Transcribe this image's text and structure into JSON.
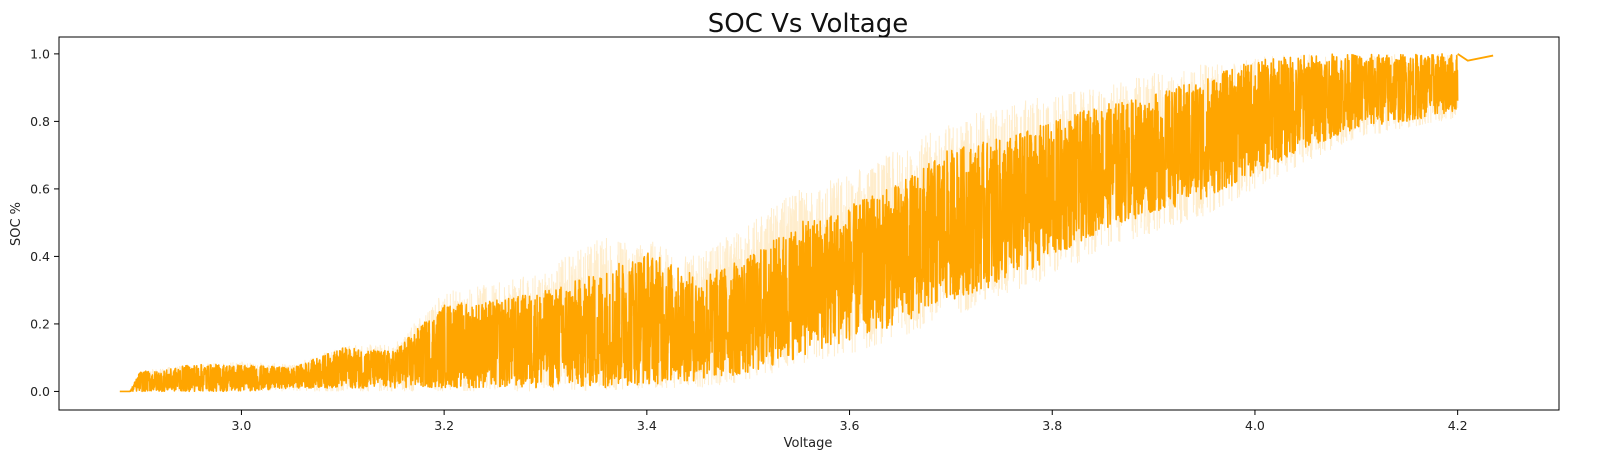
{
  "chart_data": {
    "type": "line",
    "title": "SOC Vs Voltage",
    "xlabel": "Voltage",
    "ylabel": "SOC %",
    "xlim": [
      2.82,
      4.3
    ],
    "ylim": [
      -0.055,
      1.05
    ],
    "x_ticks": [
      "3.0",
      "3.2",
      "3.4",
      "3.6",
      "3.8",
      "4.0",
      "4.2"
    ],
    "y_ticks": [
      "0.0",
      "0.2",
      "0.4",
      "0.6",
      "0.8",
      "1.0"
    ],
    "grid": false,
    "legend": "none",
    "color": "#FFA500",
    "band_color": "#FFA500",
    "band_opacity": 0.2,
    "series": [
      {
        "x": [
          2.88,
          2.89,
          2.9,
          2.92,
          2.95,
          3.0,
          3.05,
          3.1,
          3.15,
          3.2,
          3.25,
          3.3,
          3.35,
          3.4,
          3.45,
          3.5,
          3.55,
          3.6,
          3.65,
          3.7,
          3.75,
          3.8,
          3.85,
          3.9,
          3.95,
          4.0,
          4.05,
          4.1,
          4.15,
          4.2,
          4.21,
          4.235
        ],
        "upper": [
          0.0,
          0.0,
          0.06,
          0.06,
          0.08,
          0.08,
          0.07,
          0.13,
          0.12,
          0.26,
          0.27,
          0.3,
          0.35,
          0.42,
          0.34,
          0.4,
          0.5,
          0.55,
          0.62,
          0.72,
          0.75,
          0.8,
          0.85,
          0.88,
          0.93,
          0.98,
          1.0,
          1.0,
          1.0,
          1.0,
          0.98,
          0.995
        ],
        "lower": [
          0.0,
          0.0,
          0.0,
          0.0,
          0.0,
          0.0,
          0.01,
          0.01,
          0.01,
          0.01,
          0.01,
          0.01,
          0.01,
          0.02,
          0.03,
          0.05,
          0.1,
          0.15,
          0.2,
          0.27,
          0.32,
          0.39,
          0.48,
          0.53,
          0.57,
          0.64,
          0.72,
          0.78,
          0.8,
          0.83,
          0.98,
          0.995
        ],
        "upper_band": [
          0.0,
          0.0,
          0.06,
          0.07,
          0.08,
          0.09,
          0.08,
          0.14,
          0.14,
          0.3,
          0.32,
          0.36,
          0.46,
          0.45,
          0.4,
          0.5,
          0.6,
          0.65,
          0.72,
          0.8,
          0.85,
          0.88,
          0.9,
          0.95,
          0.97,
          0.99,
          1.0,
          1.0,
          1.0,
          1.0,
          0.98,
          0.995
        ],
        "lower_band": [
          0.0,
          0.0,
          0.0,
          0.0,
          0.0,
          0.0,
          0.0,
          0.0,
          0.0,
          0.0,
          0.0,
          0.0,
          0.0,
          0.01,
          0.01,
          0.03,
          0.08,
          0.11,
          0.16,
          0.22,
          0.28,
          0.34,
          0.42,
          0.47,
          0.52,
          0.6,
          0.68,
          0.75,
          0.78,
          0.81,
          0.98,
          0.995
        ]
      }
    ]
  }
}
